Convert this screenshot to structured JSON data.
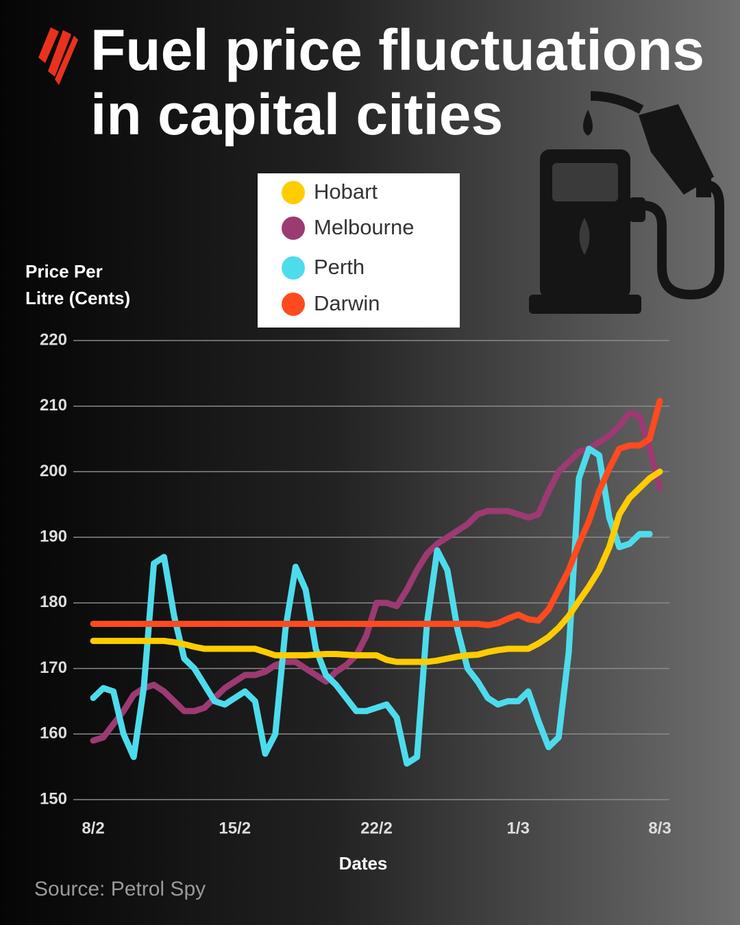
{
  "chart_data": {
    "type": "line",
    "title": "Fuel price fluctuations in capital cities",
    "y_label": "Price Per Litre (Cents)",
    "x_label": "Dates",
    "source": "Source: Petrol Spy",
    "categories": [
      "8/2",
      null,
      null,
      null,
      null,
      null,
      null,
      null,
      null,
      null,
      null,
      null,
      null,
      null,
      "15/2",
      null,
      null,
      null,
      null,
      null,
      null,
      null,
      null,
      null,
      null,
      null,
      null,
      null,
      "22/2",
      null,
      null,
      null,
      null,
      null,
      null,
      null,
      null,
      null,
      null,
      null,
      null,
      null,
      "1/3",
      null,
      null,
      null,
      null,
      null,
      null,
      null,
      null,
      null,
      null,
      null,
      null,
      null,
      "8/3"
    ],
    "series": [
      {
        "name": "Hobart",
        "color": "#ffcc00",
        "values": [
          174.2,
          174.2,
          174.2,
          174.2,
          174.2,
          174.2,
          174.2,
          174.2,
          174,
          173.7,
          173.3,
          173,
          173,
          173,
          173,
          173,
          173,
          172.5,
          172,
          172,
          172,
          172,
          172.1,
          172.2,
          172.2,
          172.1,
          172,
          172,
          172,
          171.3,
          171,
          171,
          171,
          171,
          171.2,
          171.5,
          171.8,
          172,
          172.1,
          172.5,
          172.8,
          173,
          173,
          173,
          173.8,
          174.8,
          176.2,
          178,
          180.3,
          182.5,
          185,
          188.5,
          193.5,
          196,
          197.5,
          199,
          200
        ]
      },
      {
        "name": "Melbourne",
        "color": "#9c3a72",
        "values": [
          159,
          159.5,
          161.5,
          163.5,
          166,
          167,
          167.5,
          166.5,
          165,
          163.5,
          163.5,
          164,
          165.5,
          167,
          168,
          169,
          169,
          169.5,
          170.5,
          171,
          171,
          170,
          169,
          168,
          169.5,
          170.5,
          172,
          175,
          180,
          180,
          179.5,
          182,
          185,
          187.5,
          189,
          190,
          191,
          192,
          193.5,
          194,
          194,
          194,
          193.5,
          193,
          193.5,
          197,
          200,
          201.5,
          203,
          203.5,
          204.5,
          205.5,
          207,
          209,
          208.5,
          203.5,
          197.5
        ]
      },
      {
        "name": "Perth",
        "color": "#4ddcec",
        "values": [
          165.5,
          167,
          166.5,
          160,
          156.5,
          167,
          186,
          187,
          178,
          171.5,
          170,
          167.5,
          165,
          164.5,
          165.5,
          166.5,
          165,
          157,
          160,
          176,
          185.5,
          182,
          173,
          169,
          167.5,
          165.5,
          163.5,
          163.5,
          164,
          164.5,
          162.5,
          155.5,
          156.5,
          177,
          188,
          185,
          176,
          170,
          168,
          165.5,
          164.5,
          165,
          165,
          166.5,
          162,
          158,
          159.5,
          172.5,
          199,
          203.5,
          202.5,
          193,
          188.5,
          189,
          190.5,
          190.5,
          null
        ]
      },
      {
        "name": "Darwin",
        "color": "#ff4a1f",
        "values": [
          176.8,
          176.8,
          176.8,
          176.8,
          176.8,
          176.8,
          176.8,
          176.8,
          176.8,
          176.8,
          176.8,
          176.8,
          176.8,
          176.8,
          176.8,
          176.8,
          176.8,
          176.8,
          176.8,
          176.8,
          176.8,
          176.8,
          176.8,
          176.8,
          176.8,
          176.8,
          176.8,
          176.8,
          176.8,
          176.8,
          176.8,
          176.8,
          176.8,
          176.8,
          176.8,
          176.8,
          176.8,
          176.8,
          176.8,
          176.6,
          176.9,
          177.6,
          178.2,
          177.5,
          177.3,
          179,
          182,
          185,
          189,
          192.5,
          197,
          200.5,
          203.5,
          204,
          204,
          205,
          210.8
        ]
      }
    ],
    "ylim": [
      150,
      220
    ],
    "yticks": [
      150,
      160,
      170,
      180,
      190,
      200,
      210,
      220
    ],
    "grid": true
  }
}
